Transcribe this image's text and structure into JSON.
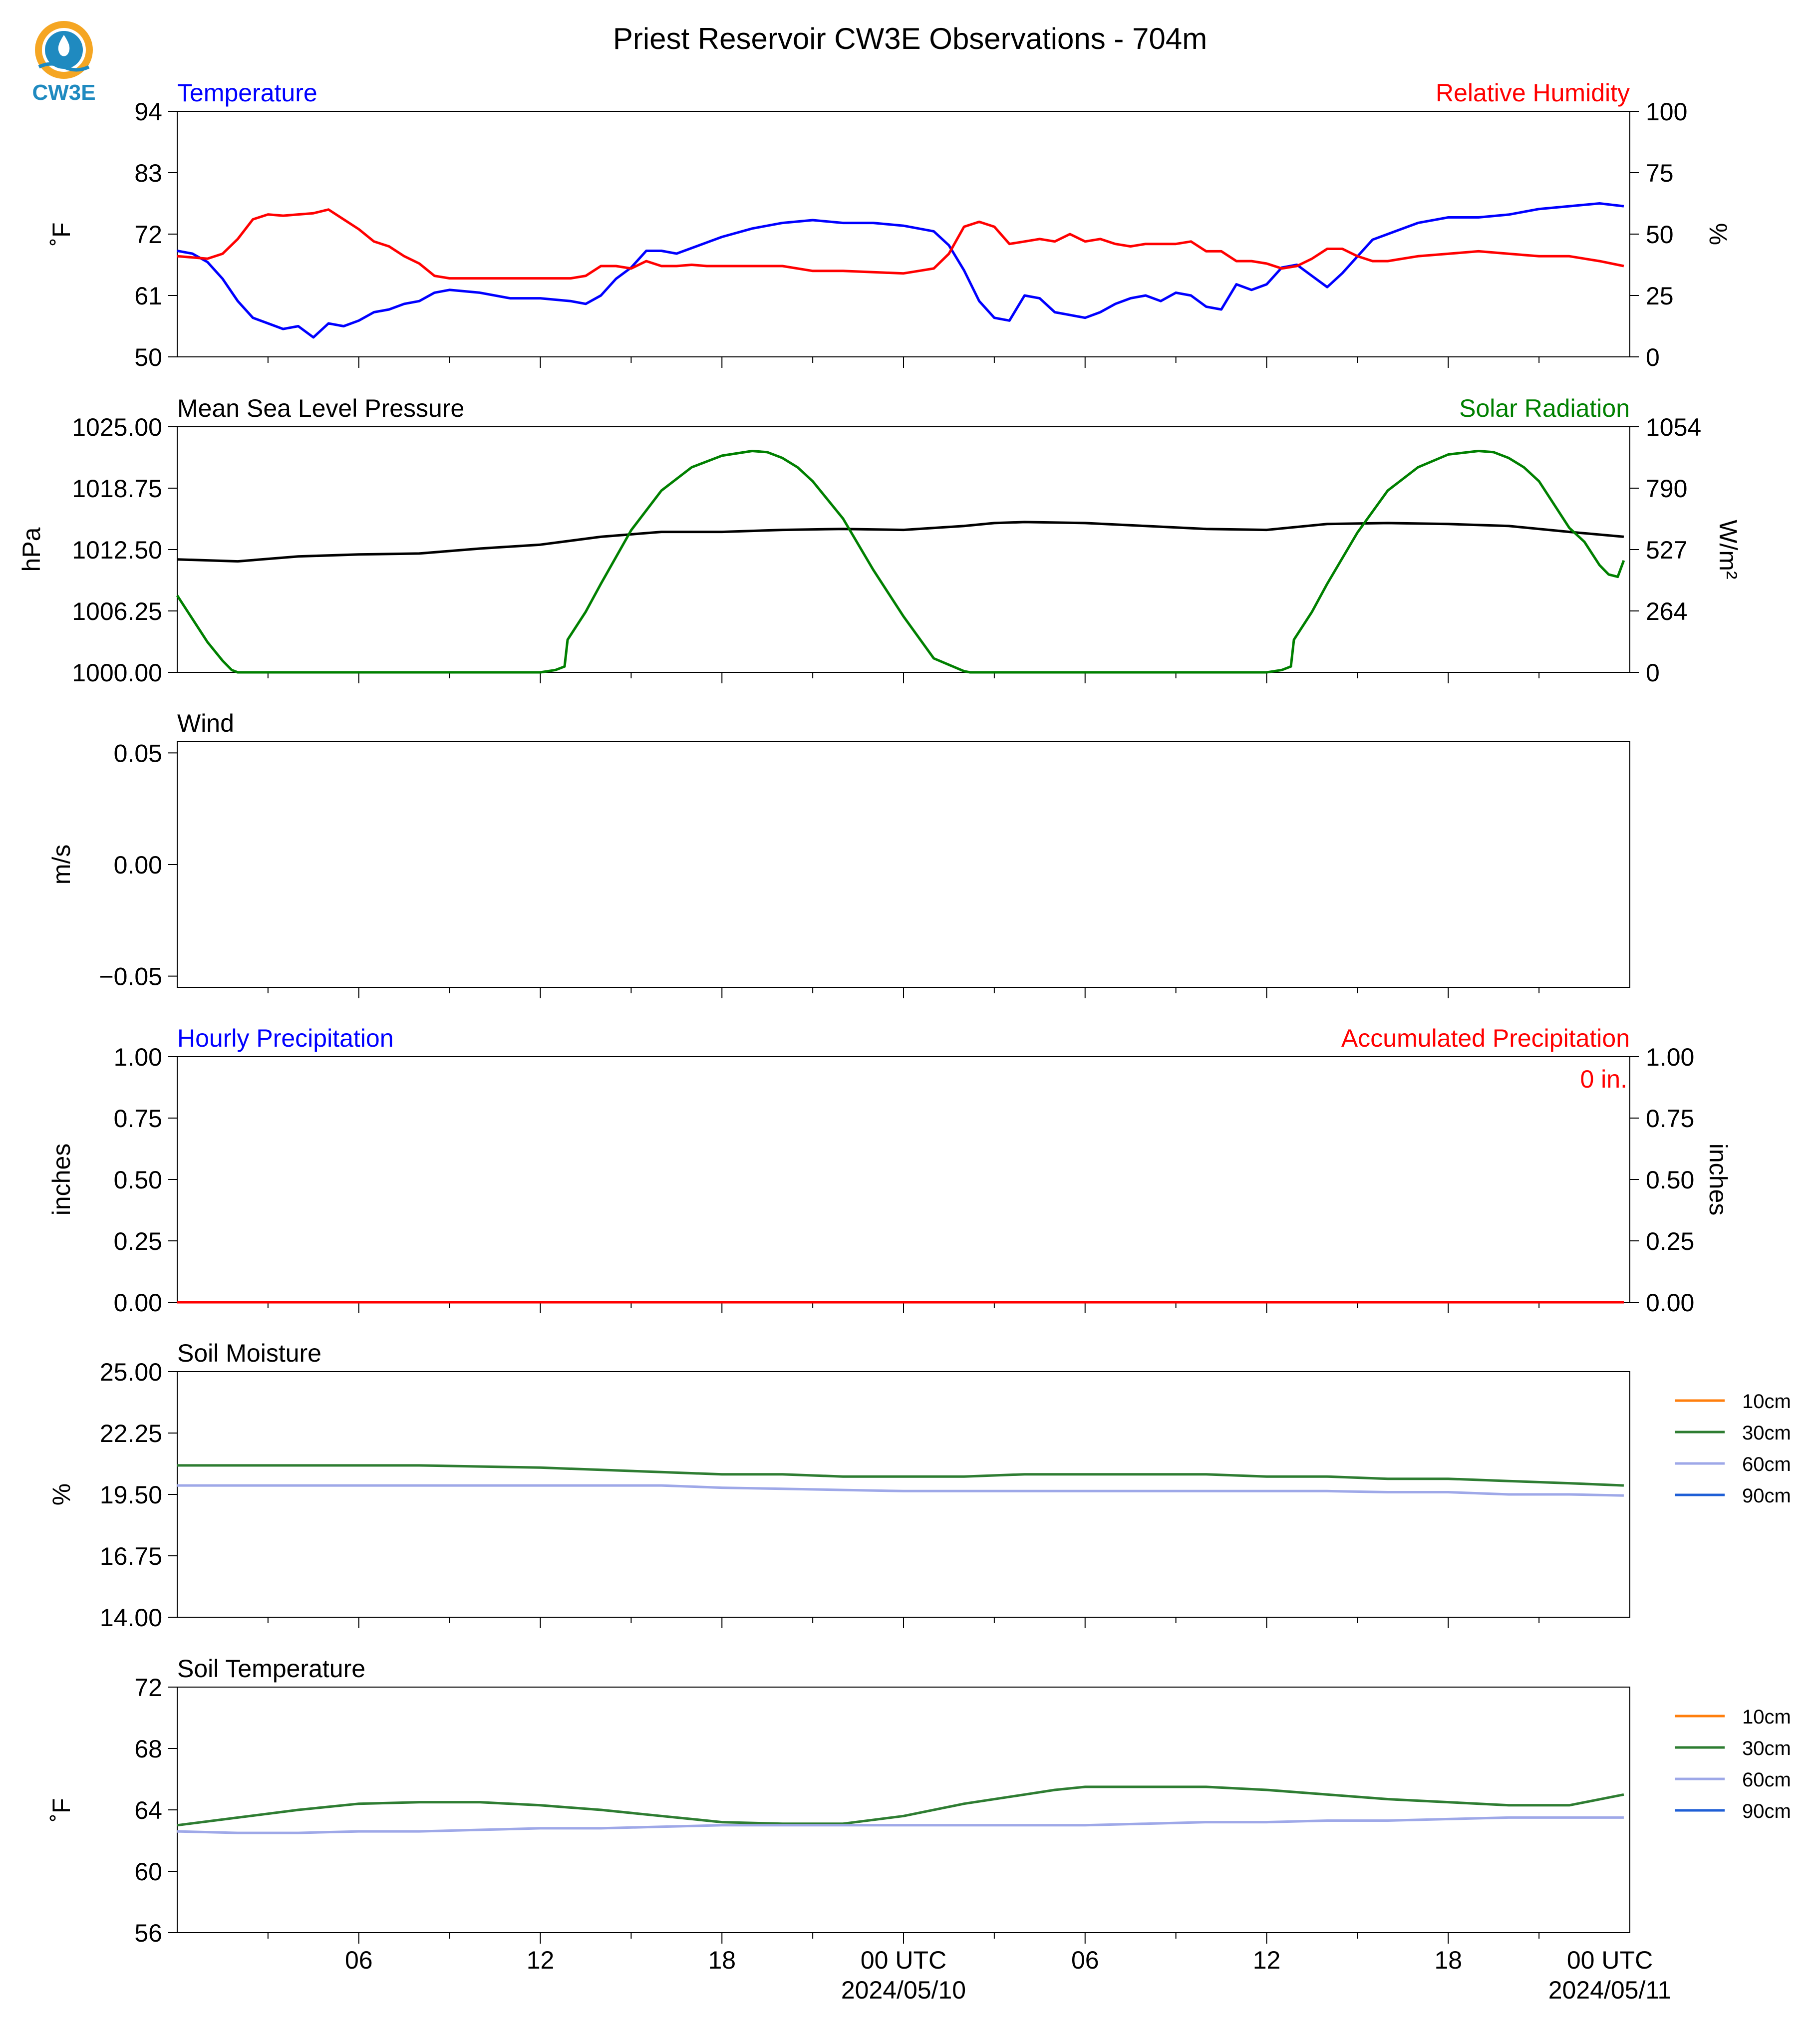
{
  "title": "Priest Reservoir CW3E Observations - 704m",
  "logo": {
    "text": "CW3E",
    "colors": {
      "orange": "#F5A623",
      "blue": "#1F8AC0"
    }
  },
  "colors": {
    "blue": "#0000ff",
    "red": "#ff0000",
    "green": "#008000",
    "black": "#000000",
    "axis": "#000000"
  },
  "chart_data": [
    {
      "id": "temp_rh",
      "type": "line",
      "title_left": "Temperature",
      "title_right": "Relative Humidity",
      "ylabel_left": "˚F",
      "ylabel_right": "%",
      "ylim_left": [
        50,
        94
      ],
      "yticks_left": [
        "50",
        "61",
        "72",
        "83",
        "94"
      ],
      "ylim_right": [
        0,
        100
      ],
      "yticks_right": [
        "0",
        "25",
        "50",
        "75",
        "100"
      ],
      "series": [
        {
          "axis": "left",
          "color": "#0000ff",
          "x": [
            0,
            0.5,
            1,
            1.5,
            2,
            2.5,
            3,
            3.5,
            4,
            4.5,
            5,
            5.5,
            6,
            6.5,
            7,
            7.5,
            8,
            8.5,
            9,
            10,
            11,
            12,
            13,
            13.5,
            14,
            14.5,
            15,
            15.5,
            16,
            16.5,
            17,
            17.5,
            18,
            19,
            20,
            21,
            22,
            23,
            24,
            24.5,
            25,
            25.5,
            26,
            26.5,
            27,
            27.5,
            28,
            28.5,
            29,
            29.5,
            30,
            30.5,
            31,
            31.5,
            32,
            32.5,
            33,
            33.5,
            34,
            34.5,
            35,
            35.5,
            36,
            36.5,
            37,
            37.5,
            38,
            38.5,
            39,
            39.5,
            40,
            41,
            42,
            43,
            44,
            45,
            46,
            47,
            47.8
          ],
          "y": [
            69,
            68.5,
            67,
            64,
            60,
            57,
            56,
            55,
            55.5,
            53.5,
            56,
            55.5,
            56.5,
            58,
            58.5,
            59.5,
            60,
            61.5,
            62,
            61.5,
            60.5,
            60.5,
            60,
            59.5,
            61,
            64,
            66,
            69,
            69,
            68.5,
            69.5,
            70.5,
            71.5,
            73,
            74,
            74.5,
            74,
            74,
            73.5,
            73,
            72.5,
            70,
            65.5,
            60,
            57,
            56.5,
            61,
            60.5,
            58,
            57.5,
            57,
            58,
            59.5,
            60.5,
            61,
            60,
            61.5,
            61,
            59,
            58.5,
            63,
            62,
            63,
            66,
            66.5,
            64.5,
            62.5,
            65,
            68,
            71,
            72,
            74,
            75,
            75,
            75.5,
            76.5,
            77,
            77.5,
            77
          ]
        },
        {
          "axis": "right",
          "color": "#ff0000",
          "x": [
            0,
            0.5,
            1,
            1.5,
            2,
            2.5,
            3,
            3.5,
            4,
            4.5,
            5,
            5.5,
            6,
            6.5,
            7,
            7.5,
            8,
            8.5,
            9,
            10,
            11,
            12,
            13,
            13.5,
            14,
            14.5,
            15,
            15.5,
            16,
            16.5,
            17,
            17.5,
            18,
            19,
            20,
            21,
            22,
            23,
            24,
            24.5,
            25,
            25.5,
            26,
            26.5,
            27,
            27.5,
            28,
            28.5,
            29,
            29.5,
            30,
            30.5,
            31,
            31.5,
            32,
            32.5,
            33,
            33.5,
            34,
            34.5,
            35,
            35.5,
            36,
            36.5,
            37,
            37.5,
            38,
            38.5,
            39,
            39.5,
            40,
            41,
            42,
            43,
            44,
            45,
            46,
            47,
            47.8
          ],
          "y": [
            41,
            40.5,
            40,
            42,
            48,
            56,
            58,
            57.5,
            58,
            58.5,
            60,
            56,
            52,
            47,
            45,
            41,
            38,
            33,
            32,
            32,
            32,
            32,
            32,
            33,
            37,
            37,
            36,
            39,
            37,
            37,
            37.5,
            37,
            37,
            37,
            37,
            35,
            35,
            34.5,
            34,
            35,
            36,
            42,
            53,
            55,
            53,
            46,
            47,
            48,
            47,
            50,
            47,
            48,
            46,
            45,
            46,
            46,
            46,
            47,
            43,
            43,
            39,
            39,
            38,
            36,
            37,
            40,
            44,
            44,
            41,
            39,
            39,
            41,
            42,
            43,
            42,
            41,
            41,
            39,
            37
          ]
        }
      ]
    },
    {
      "id": "pressure_solar",
      "type": "line",
      "title_left": "Mean Sea Level Pressure",
      "title_right": "Solar Radiation",
      "ylabel_left": "hPa",
      "ylabel_right": "W/m²",
      "ylim_left": [
        1000,
        1025
      ],
      "yticks_left": [
        "1000.00",
        "1006.25",
        "1012.50",
        "1018.75",
        "1025.00"
      ],
      "ylim_right": [
        0,
        1054
      ],
      "yticks_right": [
        "0",
        "264",
        "527",
        "790",
        "1054"
      ],
      "series": [
        {
          "axis": "left",
          "color": "#000000",
          "x": [
            0,
            2,
            4,
            6,
            8,
            10,
            12,
            14,
            16,
            18,
            20,
            22,
            24,
            26,
            27,
            28,
            30,
            32,
            34,
            36,
            38,
            40,
            42,
            44,
            46,
            47.8
          ],
          "y": [
            1011.5,
            1011.3,
            1011.8,
            1012,
            1012.1,
            1012.6,
            1013,
            1013.8,
            1014.3,
            1014.3,
            1014.5,
            1014.6,
            1014.5,
            1014.9,
            1015.2,
            1015.3,
            1015.2,
            1014.9,
            1014.6,
            1014.5,
            1015.1,
            1015.2,
            1015.1,
            1014.9,
            1014.3,
            1013.8
          ]
        },
        {
          "axis": "right",
          "color": "#008000",
          "x": [
            0,
            0.5,
            1,
            1.5,
            1.8,
            2,
            4,
            6,
            8,
            10,
            12,
            12.5,
            12.8,
            12.9,
            13.5,
            14,
            15,
            16,
            17,
            18,
            19,
            19.5,
            20,
            20.5,
            21,
            22,
            23,
            24,
            25,
            26,
            26.2,
            26.5,
            28,
            30,
            32,
            34,
            36,
            36.5,
            36.8,
            36.9,
            37.5,
            38,
            39,
            40,
            41,
            42,
            43,
            43.5,
            44,
            44.5,
            45,
            46,
            46.5,
            47,
            47.3,
            47.6,
            47.8
          ],
          "y": [
            330,
            230,
            130,
            50,
            10,
            0,
            0,
            0,
            0,
            0,
            0,
            10,
            25,
            140,
            260,
            380,
            610,
            780,
            880,
            930,
            950,
            945,
            920,
            880,
            820,
            660,
            440,
            240,
            60,
            5,
            0,
            0,
            0,
            0,
            0,
            0,
            0,
            10,
            25,
            140,
            260,
            380,
            600,
            780,
            880,
            935,
            950,
            945,
            920,
            880,
            820,
            620,
            560,
            460,
            420,
            410,
            480
          ]
        }
      ]
    },
    {
      "id": "wind",
      "type": "line",
      "title_left": "Wind",
      "ylabel_left": "m/s",
      "ylim_left": [
        -0.055,
        0.055
      ],
      "yticks_left": [
        "−0.05",
        "0.00",
        "0.05"
      ],
      "series": []
    },
    {
      "id": "precip",
      "type": "line",
      "title_left": "Hourly Precipitation",
      "title_right": "Accumulated Precipitation",
      "annotation": "0 in.",
      "ylabel_left": "inches",
      "ylabel_right": "inches",
      "ylim_left": [
        0,
        1
      ],
      "yticks_left": [
        "0.00",
        "0.25",
        "0.50",
        "0.75",
        "1.00"
      ],
      "ylim_right": [
        0,
        1
      ],
      "yticks_right": [
        "0.00",
        "0.25",
        "0.50",
        "0.75",
        "1.00"
      ],
      "series": [
        {
          "axis": "left",
          "color": "#0000ff",
          "x": [
            0,
            47.8
          ],
          "y": [
            0,
            0
          ]
        },
        {
          "axis": "right",
          "color": "#ff0000",
          "x": [
            0,
            47.8
          ],
          "y": [
            0,
            0
          ]
        }
      ]
    },
    {
      "id": "soil_moist",
      "type": "line",
      "title_left": "Soil Moisture",
      "ylabel_left": "%",
      "ylim_left": [
        14,
        25
      ],
      "yticks_left": [
        "14.00",
        "16.75",
        "19.50",
        "22.25",
        "25.00"
      ],
      "legend": [
        "10cm",
        "30cm",
        "60cm",
        "90cm"
      ],
      "legend_colors": [
        "#ff7f0e",
        "#2e7d32",
        "#9ea8e8",
        "#1f5fd6"
      ],
      "series": [
        {
          "name": "30cm",
          "axis": "left",
          "color": "#2e7d32",
          "x": [
            0,
            4,
            8,
            12,
            14,
            16,
            18,
            20,
            22,
            24,
            26,
            28,
            30,
            32,
            34,
            36,
            38,
            40,
            42,
            44,
            46,
            47.8
          ],
          "y": [
            20.8,
            20.8,
            20.8,
            20.7,
            20.6,
            20.5,
            20.4,
            20.4,
            20.3,
            20.3,
            20.3,
            20.4,
            20.4,
            20.4,
            20.4,
            20.3,
            20.3,
            20.2,
            20.2,
            20.1,
            20.0,
            19.9
          ]
        },
        {
          "name": "60cm",
          "axis": "left",
          "color": "#9ea8e8",
          "x": [
            0,
            4,
            8,
            12,
            14,
            16,
            18,
            20,
            22,
            24,
            26,
            28,
            30,
            32,
            34,
            36,
            38,
            40,
            42,
            44,
            46,
            47.8
          ],
          "y": [
            19.9,
            19.9,
            19.9,
            19.9,
            19.9,
            19.9,
            19.8,
            19.75,
            19.7,
            19.65,
            19.65,
            19.65,
            19.65,
            19.65,
            19.65,
            19.65,
            19.65,
            19.6,
            19.6,
            19.5,
            19.5,
            19.45
          ]
        }
      ]
    },
    {
      "id": "soil_temp",
      "type": "line",
      "title_left": "Soil Temperature",
      "ylabel_left": "˚F",
      "ylim_left": [
        56,
        72
      ],
      "yticks_left": [
        "56",
        "60",
        "64",
        "68",
        "72"
      ],
      "legend": [
        "10cm",
        "30cm",
        "60cm",
        "90cm"
      ],
      "legend_colors": [
        "#ff7f0e",
        "#2e7d32",
        "#9ea8e8",
        "#1f5fd6"
      ],
      "series": [
        {
          "name": "30cm",
          "axis": "left",
          "color": "#2e7d32",
          "x": [
            0,
            2,
            4,
            6,
            8,
            10,
            12,
            14,
            16,
            17,
            18,
            20,
            22,
            24,
            26,
            28,
            29,
            30,
            32,
            34,
            36,
            38,
            40,
            42,
            44,
            46,
            47.8
          ],
          "y": [
            63.0,
            63.5,
            64.0,
            64.4,
            64.5,
            64.5,
            64.3,
            64.0,
            63.6,
            63.4,
            63.2,
            63.1,
            63.1,
            63.6,
            64.4,
            65.0,
            65.3,
            65.5,
            65.5,
            65.5,
            65.3,
            65.0,
            64.7,
            64.5,
            64.3,
            64.3,
            65.0
          ]
        },
        {
          "name": "60cm",
          "axis": "left",
          "color": "#9ea8e8",
          "x": [
            0,
            2,
            4,
            6,
            8,
            10,
            12,
            14,
            16,
            18,
            20,
            22,
            24,
            26,
            28,
            30,
            32,
            34,
            36,
            38,
            40,
            42,
            44,
            46,
            47.8
          ],
          "y": [
            62.6,
            62.5,
            62.5,
            62.6,
            62.6,
            62.7,
            62.8,
            62.8,
            62.9,
            63.0,
            63.0,
            63.0,
            63.0,
            63.0,
            63.0,
            63.0,
            63.1,
            63.2,
            63.2,
            63.3,
            63.3,
            63.4,
            63.5,
            63.5,
            63.5
          ]
        }
      ]
    }
  ],
  "x_axis": {
    "tick_labels": [
      "06",
      "12",
      "18",
      "00 UTC",
      "06",
      "12",
      "18",
      "00 UTC"
    ],
    "date_labels": [
      "2024/05/10",
      "2024/05/11"
    ]
  }
}
